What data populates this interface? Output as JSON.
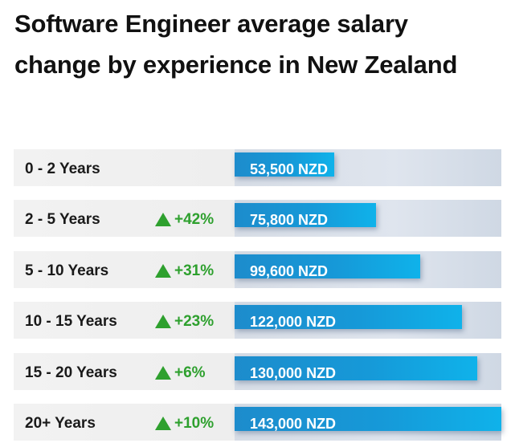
{
  "chart_data": {
    "type": "bar",
    "orientation": "horizontal",
    "title": "Software Engineer average salary change by experience in New Zealand",
    "categories": [
      "0 - 2 Years",
      "2 - 5 Years",
      "5 - 10 Years",
      "10 - 15 Years",
      "15 - 20 Years",
      "20+ Years"
    ],
    "values": [
      53500,
      75800,
      99600,
      122000,
      130000,
      143000
    ],
    "value_labels": [
      "53,500 NZD",
      "75,800 NZD",
      "99,600 NZD",
      "122,000 NZD",
      "130,000 NZD",
      "143,000 NZD"
    ],
    "changes": [
      "",
      "+42%",
      "+31%",
      "+23%",
      "+6%",
      "+10%"
    ],
    "xlim": [
      0,
      143000
    ],
    "grid": false,
    "colors": {
      "bar": "#1699d8",
      "change": "#2ea02e"
    },
    "change_icon": "up-triangle-icon"
  }
}
